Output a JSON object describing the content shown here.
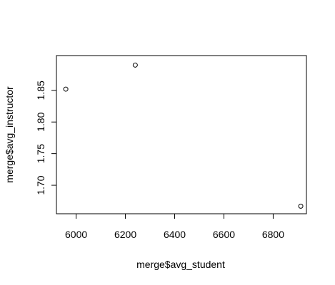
{
  "chart_data": {
    "type": "scatter",
    "xlabel": "merge$avg_student",
    "ylabel": "merge$avg_instructor",
    "xlim": [
      5920,
      6935
    ],
    "ylim": [
      1.655,
      1.905
    ],
    "x_ticks": [
      6000,
      6200,
      6400,
      6600,
      6800
    ],
    "x_tick_labels": [
      "6000",
      "6200",
      "6400",
      "6600",
      "6800"
    ],
    "y_ticks": [
      1.7,
      1.75,
      1.8,
      1.85
    ],
    "y_tick_labels": [
      "1.70",
      "1.75",
      "1.80",
      "1.85"
    ],
    "points": [
      {
        "x": 5958,
        "y": 1.852
      },
      {
        "x": 6240,
        "y": 1.89
      },
      {
        "x": 6912,
        "y": 1.667
      }
    ],
    "grid": false,
    "legend": "none",
    "marker": "open-circle",
    "colors": {
      "axis": "#000000",
      "point": "#000000",
      "background": "#ffffff"
    }
  }
}
